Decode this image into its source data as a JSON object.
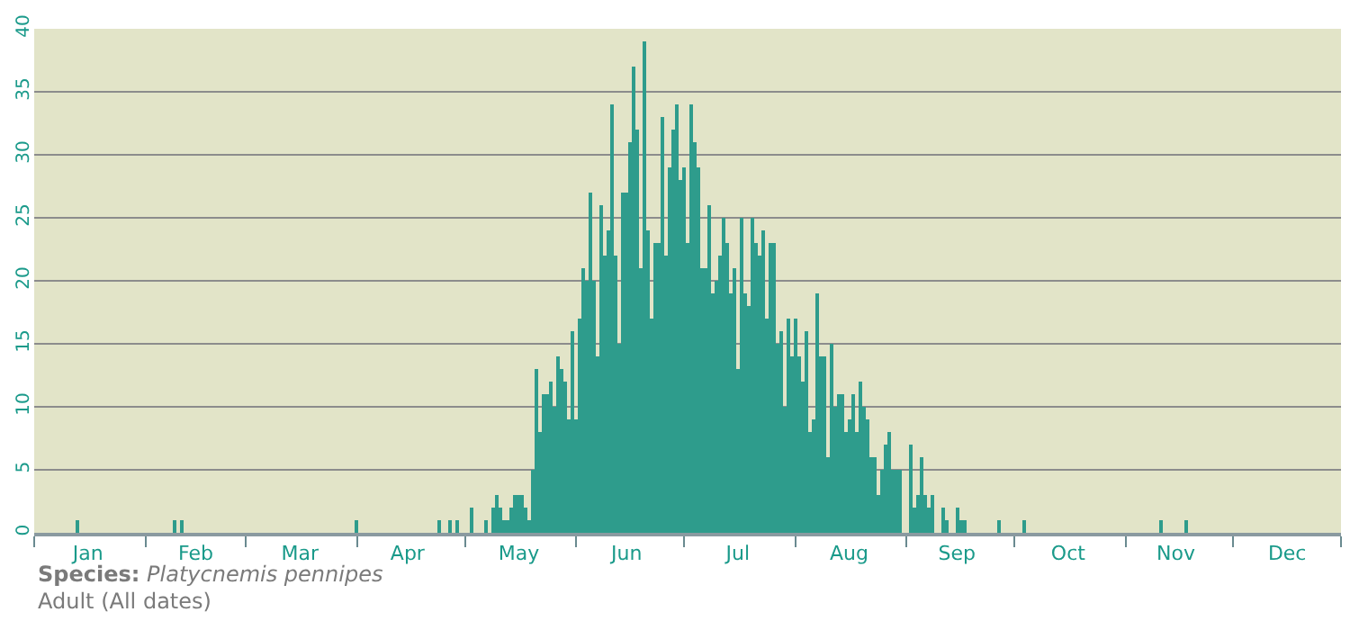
{
  "chart_data": {
    "type": "bar",
    "x": [
      "--01-13",
      "--02-09",
      "--02-11",
      "--04-01",
      "--04-24",
      "--04-27",
      "--04-29",
      "--05-03",
      "--05-07",
      "--05-09",
      "--05-10",
      "--05-11",
      "--05-12",
      "--05-13",
      "--05-14",
      "--05-15",
      "--05-16",
      "--05-17",
      "--05-18",
      "--05-19",
      "--05-20",
      "--05-21",
      "--05-22",
      "--05-23",
      "--05-24",
      "--05-25",
      "--05-26",
      "--05-27",
      "--05-28",
      "--05-29",
      "--05-30",
      "--05-31",
      "--06-01",
      "--06-02",
      "--06-03",
      "--06-04",
      "--06-05",
      "--06-06",
      "--06-07",
      "--06-08",
      "--06-09",
      "--06-10",
      "--06-11",
      "--06-12",
      "--06-13",
      "--06-14",
      "--06-15",
      "--06-16",
      "--06-17",
      "--06-18",
      "--06-19",
      "--06-20",
      "--06-21",
      "--06-22",
      "--06-23",
      "--06-24",
      "--06-25",
      "--06-26",
      "--06-27",
      "--06-28",
      "--06-29",
      "--06-30",
      "--07-01",
      "--07-02",
      "--07-03",
      "--07-04",
      "--07-05",
      "--07-06",
      "--07-07",
      "--07-08",
      "--07-09",
      "--07-10",
      "--07-11",
      "--07-12",
      "--07-13",
      "--07-14",
      "--07-15",
      "--07-16",
      "--07-17",
      "--07-18",
      "--07-19",
      "--07-20",
      "--07-21",
      "--07-22",
      "--07-23",
      "--07-24",
      "--07-25",
      "--07-26",
      "--07-27",
      "--07-28",
      "--07-29",
      "--07-30",
      "--07-31",
      "--08-01",
      "--08-02",
      "--08-03",
      "--08-04",
      "--08-05",
      "--08-06",
      "--08-07",
      "--08-08",
      "--08-09",
      "--08-10",
      "--08-11",
      "--08-12",
      "--08-13",
      "--08-14",
      "--08-15",
      "--08-16",
      "--08-17",
      "--08-18",
      "--08-19",
      "--08-20",
      "--08-21",
      "--08-22",
      "--08-23",
      "--08-24",
      "--08-25",
      "--08-26",
      "--08-27",
      "--08-28",
      "--08-29",
      "--08-30",
      "--09-02",
      "--09-03",
      "--09-04",
      "--09-05",
      "--09-06",
      "--09-07",
      "--09-08",
      "--09-11",
      "--09-12",
      "--09-15",
      "--09-16",
      "--09-17",
      "--09-27",
      "--10-04",
      "--11-11",
      "--11-18"
    ],
    "values": [
      1,
      1,
      1,
      1,
      1,
      1,
      1,
      2,
      1,
      2,
      3,
      2,
      1,
      1,
      2,
      3,
      3,
      3,
      2,
      1,
      5,
      13,
      8,
      11,
      11,
      12,
      10,
      14,
      13,
      12,
      9,
      16,
      9,
      17,
      21,
      20,
      27,
      20,
      14,
      26,
      22,
      24,
      34,
      22,
      15,
      27,
      27,
      31,
      37,
      32,
      21,
      39,
      24,
      17,
      23,
      23,
      33,
      22,
      29,
      32,
      34,
      28,
      29,
      23,
      34,
      31,
      29,
      21,
      21,
      26,
      19,
      20,
      22,
      25,
      23,
      19,
      21,
      13,
      25,
      19,
      18,
      25,
      23,
      22,
      24,
      17,
      23,
      23,
      15,
      16,
      10,
      17,
      14,
      17,
      14,
      12,
      16,
      8,
      9,
      19,
      14,
      14,
      6,
      15,
      10,
      11,
      11,
      8,
      9,
      11,
      8,
      12,
      10,
      9,
      6,
      6,
      3,
      5,
      7,
      8,
      5,
      5,
      5,
      7,
      2,
      3,
      6,
      3,
      2,
      3,
      2,
      1,
      2,
      1,
      1,
      1,
      1,
      1,
      1
    ],
    "color": "#2e9c8c",
    "xlim": [
      "--01-01",
      "--12-31"
    ],
    "xticks": [
      {
        "value": "--01-16",
        "label": "Jan"
      },
      {
        "value": "--02-15",
        "label": "Feb"
      },
      {
        "value": "--03-16",
        "label": "Mar"
      },
      {
        "value": "--04-15",
        "label": "Apr"
      },
      {
        "value": "--05-16",
        "label": "May"
      },
      {
        "value": "--06-15",
        "label": "Jun"
      },
      {
        "value": "--07-16",
        "label": "Jul"
      },
      {
        "value": "--08-16",
        "label": "Aug"
      },
      {
        "value": "--09-15",
        "label": "Sep"
      },
      {
        "value": "--10-16",
        "label": "Oct"
      },
      {
        "value": "--11-15",
        "label": "Nov"
      },
      {
        "value": "--12-16",
        "label": "Dec"
      },
      {
        "value": "--01-01",
        "label": null
      },
      {
        "value": "--02-01",
        "label": null
      },
      {
        "value": "--03-01",
        "label": null
      },
      {
        "value": "--04-01",
        "label": null
      },
      {
        "value": "--05-01",
        "label": null
      },
      {
        "value": "--06-01",
        "label": null
      },
      {
        "value": "--07-01",
        "label": null
      },
      {
        "value": "--08-01",
        "label": null
      },
      {
        "value": "--09-01",
        "label": null
      },
      {
        "value": "--10-01",
        "label": null
      },
      {
        "value": "--11-01",
        "label": null
      },
      {
        "value": "--12-01",
        "label": null
      },
      {
        "value": "--12-31",
        "label": null
      }
    ],
    "ylim": [
      0,
      40
    ],
    "yticks": [
      0,
      5,
      10,
      15,
      20,
      25,
      30,
      35,
      40
    ],
    "grid": "y",
    "annotations": [
      "Species: Platycnemis pennipes",
      "Adult (All dates)"
    ]
  }
}
